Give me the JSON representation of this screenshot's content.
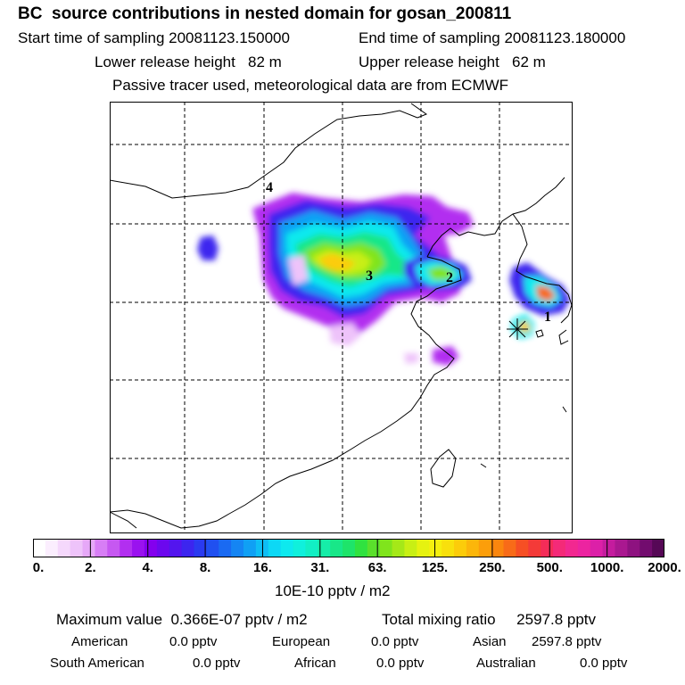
{
  "header": {
    "title": "BC  source contributions in nested domain for gosan_200811",
    "start_label": "Start time of sampling 20081123.150000",
    "end_label": "End time of sampling 20081123.180000",
    "lower_label": "Lower release height   82 m",
    "upper_label": "Upper release height   62 m",
    "note": "Passive tracer used, meteorological data are from ECMWF"
  },
  "map": {
    "labels": [
      "1",
      "2",
      "3",
      "4"
    ],
    "receptor_marker": "receptor-star-icon"
  },
  "colorbar": {
    "ticks": [
      "0.",
      "2.",
      "4.",
      "8.",
      "16.",
      "31.",
      "63.",
      "125.",
      "250.",
      "500.",
      "1000.",
      "2000."
    ],
    "units": "10E-10 pptv / m2",
    "colors": [
      "#ffffff",
      "#fbeefe",
      "#f5d8fc",
      "#eec3fa",
      "#e6a8f8",
      "#d77ef5",
      "#c658f1",
      "#b22ff0",
      "#9a12ef",
      "#8400ee",
      "#6c08ee",
      "#5315ee",
      "#3c25ef",
      "#2a3af0",
      "#2050f0",
      "#1a6af2",
      "#1585f3",
      "#10a0f4",
      "#0ebef5",
      "#0dd8f5",
      "#0ee9ee",
      "#10f0dc",
      "#12efc4",
      "#16eda8",
      "#18e788",
      "#1ee46a",
      "#30e240",
      "#5ae02c",
      "#80e41c",
      "#a5e818",
      "#c8ef14",
      "#e6f210",
      "#f5ef0e",
      "#f8e00c",
      "#fccc0a",
      "#fcb60a",
      "#fc9e0a",
      "#fa860e",
      "#f86b18",
      "#f64f24",
      "#f43a38",
      "#f42c58",
      "#f42a78",
      "#f22890",
      "#ec24a0",
      "#dc20a8",
      "#c41c9e",
      "#aa1890",
      "#8e1280",
      "#720c6e",
      "#560856"
    ]
  },
  "summary": {
    "max_line": "Maximum value  0.366E-07 pptv / m2",
    "total_line": "Total mixing ratio     2597.8 pptv",
    "rows": [
      [
        {
          "label": "American",
          "value": "0.0 pptv"
        },
        {
          "label": "European",
          "value": "0.0 pptv"
        },
        {
          "label": "Asian",
          "value": "2597.8 pptv"
        }
      ],
      [
        {
          "label": "South American",
          "value": "0.0 pptv"
        },
        {
          "label": "African",
          "value": "0.0 pptv"
        },
        {
          "label": "Australian",
          "value": "0.0 pptv"
        }
      ]
    ]
  }
}
